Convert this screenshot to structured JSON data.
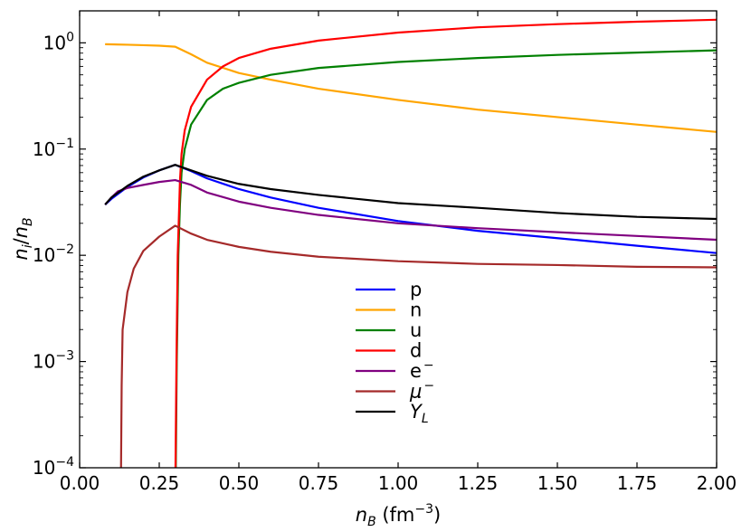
{
  "chart_data": {
    "type": "line",
    "title": "",
    "xlabel": {
      "base": "n",
      "sub": "B",
      "rest": " (fm",
      "sup": "−3",
      "close": ")"
    },
    "ylabel": {
      "base1": "n",
      "sub1": "i",
      "slash": "/",
      "base2": "n",
      "sub2": "B"
    },
    "xlim": [
      0.0,
      2.0
    ],
    "ylim": [
      0.0001,
      2.0
    ],
    "yscale": "log",
    "xticks": [
      {
        "value": 0.0,
        "label": "0.00"
      },
      {
        "value": 0.25,
        "label": "0.25"
      },
      {
        "value": 0.5,
        "label": "0.50"
      },
      {
        "value": 0.75,
        "label": "0.75"
      },
      {
        "value": 1.0,
        "label": "1.00"
      },
      {
        "value": 1.25,
        "label": "1.25"
      },
      {
        "value": 1.5,
        "label": "1.50"
      },
      {
        "value": 1.75,
        "label": "1.75"
      },
      {
        "value": 2.0,
        "label": "2.00"
      }
    ],
    "yticks": [
      {
        "value": 0.0001,
        "base": "10",
        "exp": "−4"
      },
      {
        "value": 0.001,
        "base": "10",
        "exp": "−3"
      },
      {
        "value": 0.01,
        "base": "10",
        "exp": "−2"
      },
      {
        "value": 0.1,
        "base": "10",
        "exp": "−1"
      },
      {
        "value": 1.0,
        "base": "10",
        "exp": "0"
      }
    ],
    "grid": false,
    "legend_position": "lower-center",
    "series": [
      {
        "name": "p",
        "label": {
          "text": "p"
        },
        "color": "#0000ff",
        "points": [
          [
            0.08,
            0.03
          ],
          [
            0.1,
            0.034
          ],
          [
            0.15,
            0.044
          ],
          [
            0.2,
            0.054
          ],
          [
            0.25,
            0.063
          ],
          [
            0.3,
            0.071
          ],
          [
            0.35,
            0.062
          ],
          [
            0.4,
            0.053
          ],
          [
            0.5,
            0.042
          ],
          [
            0.6,
            0.035
          ],
          [
            0.75,
            0.028
          ],
          [
            1.0,
            0.021
          ],
          [
            1.25,
            0.017
          ],
          [
            1.5,
            0.0145
          ],
          [
            1.75,
            0.0123
          ],
          [
            2.0,
            0.0105
          ]
        ]
      },
      {
        "name": "n",
        "label": {
          "text": "n"
        },
        "color": "#ffa500",
        "points": [
          [
            0.08,
            0.97
          ],
          [
            0.15,
            0.96
          ],
          [
            0.2,
            0.95
          ],
          [
            0.25,
            0.94
          ],
          [
            0.3,
            0.92
          ],
          [
            0.35,
            0.78
          ],
          [
            0.4,
            0.65
          ],
          [
            0.5,
            0.52
          ],
          [
            0.6,
            0.45
          ],
          [
            0.75,
            0.37
          ],
          [
            1.0,
            0.29
          ],
          [
            1.25,
            0.235
          ],
          [
            1.5,
            0.2
          ],
          [
            1.75,
            0.17
          ],
          [
            2.0,
            0.145
          ]
        ]
      },
      {
        "name": "u",
        "label": {
          "text": "u"
        },
        "color": "#008000",
        "points": [
          [
            0.302,
            0.0001
          ],
          [
            0.305,
            0.001
          ],
          [
            0.31,
            0.01
          ],
          [
            0.315,
            0.03
          ],
          [
            0.32,
            0.06
          ],
          [
            0.33,
            0.1
          ],
          [
            0.35,
            0.17
          ],
          [
            0.4,
            0.29
          ],
          [
            0.45,
            0.37
          ],
          [
            0.5,
            0.42
          ],
          [
            0.6,
            0.5
          ],
          [
            0.75,
            0.58
          ],
          [
            1.0,
            0.66
          ],
          [
            1.25,
            0.72
          ],
          [
            1.5,
            0.77
          ],
          [
            1.75,
            0.81
          ],
          [
            2.0,
            0.85
          ]
        ]
      },
      {
        "name": "d",
        "label": {
          "text": "d"
        },
        "color": "#ff0000",
        "points": [
          [
            0.301,
            0.0001
          ],
          [
            0.304,
            0.001
          ],
          [
            0.308,
            0.01
          ],
          [
            0.315,
            0.05
          ],
          [
            0.32,
            0.09
          ],
          [
            0.33,
            0.15
          ],
          [
            0.35,
            0.25
          ],
          [
            0.4,
            0.45
          ],
          [
            0.45,
            0.6
          ],
          [
            0.5,
            0.72
          ],
          [
            0.6,
            0.88
          ],
          [
            0.75,
            1.05
          ],
          [
            1.0,
            1.25
          ],
          [
            1.25,
            1.4
          ],
          [
            1.5,
            1.5
          ],
          [
            1.75,
            1.58
          ],
          [
            2.0,
            1.65
          ]
        ]
      },
      {
        "name": "e-",
        "label": {
          "text": "e",
          "sup": "−"
        },
        "color": "#800080",
        "points": [
          [
            0.08,
            0.03
          ],
          [
            0.1,
            0.035
          ],
          [
            0.12,
            0.04
          ],
          [
            0.15,
            0.043
          ],
          [
            0.2,
            0.046
          ],
          [
            0.25,
            0.049
          ],
          [
            0.3,
            0.051
          ],
          [
            0.35,
            0.046
          ],
          [
            0.4,
            0.039
          ],
          [
            0.5,
            0.032
          ],
          [
            0.6,
            0.028
          ],
          [
            0.75,
            0.024
          ],
          [
            1.0,
            0.02
          ],
          [
            1.25,
            0.018
          ],
          [
            1.5,
            0.0165
          ],
          [
            1.75,
            0.0152
          ],
          [
            2.0,
            0.014
          ]
        ]
      },
      {
        "name": "mu-",
        "label": {
          "text": "μ",
          "sup": "−",
          "italic": true
        },
        "color": "#a52a2a",
        "points": [
          [
            0.13,
            0.0001
          ],
          [
            0.132,
            0.0006
          ],
          [
            0.135,
            0.002
          ],
          [
            0.15,
            0.0045
          ],
          [
            0.17,
            0.0075
          ],
          [
            0.2,
            0.011
          ],
          [
            0.25,
            0.015
          ],
          [
            0.3,
            0.019
          ],
          [
            0.35,
            0.016
          ],
          [
            0.4,
            0.014
          ],
          [
            0.5,
            0.012
          ],
          [
            0.6,
            0.0108
          ],
          [
            0.75,
            0.0097
          ],
          [
            1.0,
            0.0088
          ],
          [
            1.25,
            0.0083
          ],
          [
            1.5,
            0.0081
          ],
          [
            1.75,
            0.0078
          ],
          [
            2.0,
            0.0077
          ]
        ]
      },
      {
        "name": "YL",
        "label": {
          "text": "Y",
          "sub": "L",
          "italic": true
        },
        "color": "#000000",
        "points": [
          [
            0.08,
            0.03
          ],
          [
            0.1,
            0.035
          ],
          [
            0.15,
            0.045
          ],
          [
            0.2,
            0.055
          ],
          [
            0.25,
            0.063
          ],
          [
            0.3,
            0.071
          ],
          [
            0.35,
            0.063
          ],
          [
            0.4,
            0.056
          ],
          [
            0.5,
            0.047
          ],
          [
            0.6,
            0.042
          ],
          [
            0.75,
            0.037
          ],
          [
            1.0,
            0.031
          ],
          [
            1.25,
            0.028
          ],
          [
            1.5,
            0.025
          ],
          [
            1.75,
            0.023
          ],
          [
            2.0,
            0.022
          ]
        ]
      }
    ]
  }
}
